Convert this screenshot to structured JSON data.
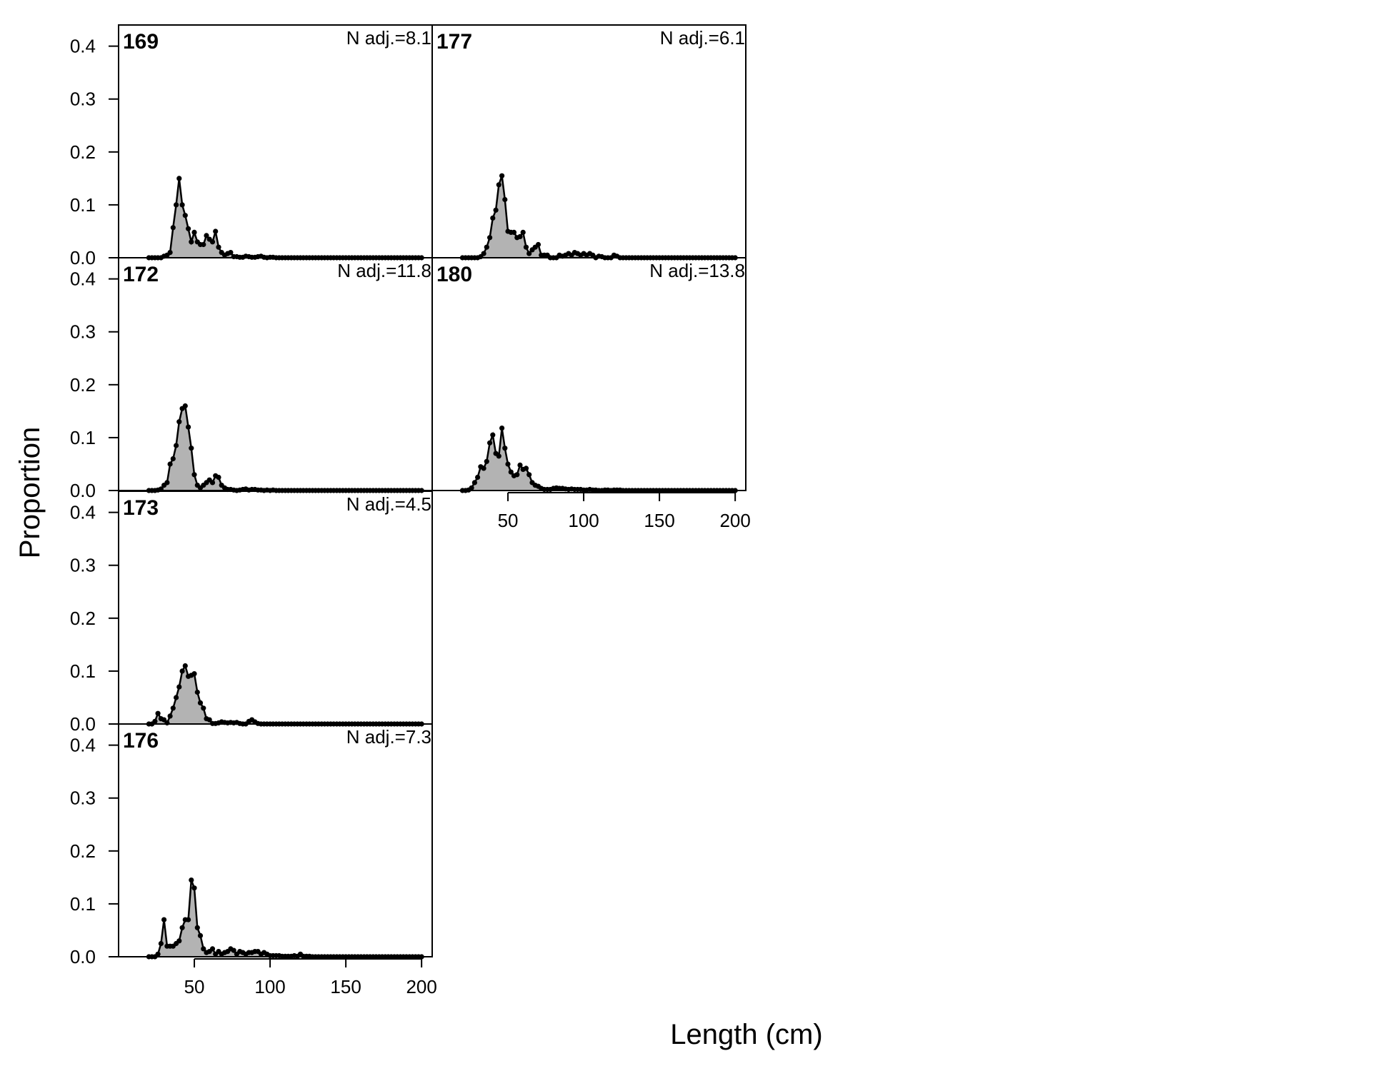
{
  "figure": {
    "xlabel": "Length (cm)",
    "ylabel": "Proportion",
    "yticks": [
      "0.0",
      "0.1",
      "0.2",
      "0.3",
      "0.4"
    ],
    "xticks": [
      "50",
      "100",
      "150",
      "200"
    ]
  },
  "chart_data": [
    {
      "type": "area",
      "title": "169",
      "annotation": "N adj.=8.1",
      "x": [
        20,
        22,
        24,
        26,
        28,
        30,
        32,
        34,
        36,
        38,
        40,
        42,
        44,
        46,
        48,
        50,
        52,
        54,
        56,
        58,
        60,
        62,
        64,
        66,
        68,
        70,
        72,
        74,
        76,
        78,
        80,
        82,
        84,
        86,
        88,
        90,
        92,
        94,
        96,
        98,
        100,
        102,
        104,
        106,
        108,
        110,
        112,
        114,
        116,
        118,
        120,
        122,
        124,
        126,
        128,
        130,
        132,
        134,
        136,
        138,
        140,
        142,
        144,
        146,
        148,
        150,
        152,
        154,
        156,
        158,
        160,
        162,
        164,
        166,
        168,
        170,
        172,
        174,
        176,
        178,
        180,
        182,
        184,
        186,
        188,
        190,
        192,
        194,
        196,
        198,
        200
      ],
      "values": [
        0,
        0,
        0,
        0,
        0,
        0.003,
        0.005,
        0.01,
        0.057,
        0.1,
        0.15,
        0.1,
        0.08,
        0.055,
        0.03,
        0.048,
        0.03,
        0.025,
        0.025,
        0.042,
        0.035,
        0.03,
        0.05,
        0.02,
        0.01,
        0.005,
        0.008,
        0.01,
        0.002,
        0.002,
        0.001,
        0.001,
        0.003,
        0.002,
        0.001,
        0.001,
        0.002,
        0.003,
        0.001,
        0,
        0.001,
        0.001,
        0,
        0,
        0,
        0,
        0,
        0,
        0,
        0,
        0,
        0,
        0,
        0,
        0,
        0,
        0,
        0,
        0,
        0,
        0,
        0,
        0,
        0,
        0,
        0,
        0,
        0,
        0,
        0,
        0,
        0,
        0,
        0,
        0,
        0,
        0,
        0,
        0,
        0,
        0,
        0,
        0,
        0,
        0,
        0,
        0,
        0,
        0,
        0,
        0
      ],
      "xlim": [
        0,
        207
      ],
      "ylim": [
        0,
        0.44
      ],
      "ylabel": "Proportion"
    },
    {
      "type": "area",
      "title": "172",
      "annotation": "N adj.=11.8",
      "x": [
        20,
        22,
        24,
        26,
        28,
        30,
        32,
        34,
        36,
        38,
        40,
        42,
        44,
        46,
        48,
        50,
        52,
        54,
        56,
        58,
        60,
        62,
        64,
        66,
        68,
        70,
        72,
        74,
        76,
        78,
        80,
        82,
        84,
        86,
        88,
        90,
        92,
        94,
        96,
        98,
        100,
        102,
        104,
        106,
        108,
        110,
        112,
        114,
        116,
        118,
        120,
        122,
        124,
        126,
        128,
        130,
        132,
        134,
        136,
        138,
        140,
        142,
        144,
        146,
        148,
        150,
        152,
        154,
        156,
        158,
        160,
        162,
        164,
        166,
        168,
        170,
        172,
        174,
        176,
        178,
        180,
        182,
        184,
        186,
        188,
        190,
        192,
        194,
        196,
        198,
        200
      ],
      "values": [
        0,
        0,
        0,
        0.001,
        0.003,
        0.01,
        0.015,
        0.05,
        0.06,
        0.085,
        0.13,
        0.155,
        0.16,
        0.12,
        0.08,
        0.03,
        0.01,
        0.005,
        0.01,
        0.015,
        0.02,
        0.015,
        0.028,
        0.025,
        0.01,
        0.005,
        0.002,
        0.002,
        0.001,
        0,
        0.001,
        0.002,
        0.003,
        0.001,
        0.002,
        0.002,
        0.001,
        0.001,
        0,
        0.001,
        0,
        0.001,
        0,
        0,
        0,
        0,
        0,
        0,
        0,
        0,
        0,
        0,
        0,
        0,
        0,
        0,
        0,
        0,
        0,
        0,
        0,
        0,
        0,
        0,
        0,
        0,
        0,
        0,
        0,
        0,
        0,
        0,
        0,
        0,
        0,
        0,
        0,
        0,
        0,
        0,
        0,
        0,
        0,
        0,
        0,
        0,
        0,
        0,
        0,
        0,
        0
      ],
      "xlim": [
        0,
        207
      ],
      "ylim": [
        0,
        0.44
      ],
      "ylabel": "Proportion"
    },
    {
      "type": "area",
      "title": "173",
      "annotation": "N adj.=4.5",
      "x": [
        20,
        22,
        24,
        26,
        28,
        30,
        32,
        34,
        36,
        38,
        40,
        42,
        44,
        46,
        48,
        50,
        52,
        54,
        56,
        58,
        60,
        62,
        64,
        66,
        68,
        70,
        72,
        74,
        76,
        78,
        80,
        82,
        84,
        86,
        88,
        90,
        92,
        94,
        96,
        98,
        100,
        102,
        104,
        106,
        108,
        110,
        112,
        114,
        116,
        118,
        120,
        122,
        124,
        126,
        128,
        130,
        132,
        134,
        136,
        138,
        140,
        142,
        144,
        146,
        148,
        150,
        152,
        154,
        156,
        158,
        160,
        162,
        164,
        166,
        168,
        170,
        172,
        174,
        176,
        178,
        180,
        182,
        184,
        186,
        188,
        190,
        192,
        194,
        196,
        198,
        200
      ],
      "values": [
        0,
        0,
        0.005,
        0.02,
        0.01,
        0.008,
        0.002,
        0.015,
        0.03,
        0.05,
        0.07,
        0.1,
        0.11,
        0.09,
        0.092,
        0.095,
        0.06,
        0.04,
        0.03,
        0.01,
        0.008,
        0.001,
        0.001,
        0.002,
        0.004,
        0.003,
        0.002,
        0.003,
        0.002,
        0.003,
        0.001,
        0,
        0,
        0.005,
        0.008,
        0.004,
        0.001,
        0,
        0,
        0,
        0,
        0,
        0,
        0,
        0,
        0,
        0,
        0,
        0,
        0,
        0,
        0,
        0,
        0,
        0,
        0,
        0,
        0,
        0,
        0,
        0,
        0,
        0,
        0,
        0,
        0,
        0,
        0,
        0,
        0,
        0,
        0,
        0,
        0,
        0,
        0,
        0,
        0,
        0,
        0,
        0,
        0,
        0,
        0,
        0,
        0,
        0,
        0,
        0,
        0,
        0
      ],
      "xlim": [
        0,
        207
      ],
      "ylim": [
        0,
        0.44
      ],
      "ylabel": "Proportion"
    },
    {
      "type": "area",
      "title": "176",
      "annotation": "N adj.=7.3",
      "x": [
        20,
        22,
        24,
        26,
        28,
        30,
        32,
        34,
        36,
        38,
        40,
        42,
        44,
        46,
        48,
        50,
        52,
        54,
        56,
        58,
        60,
        62,
        64,
        66,
        68,
        70,
        72,
        74,
        76,
        78,
        80,
        82,
        84,
        86,
        88,
        90,
        92,
        94,
        96,
        98,
        100,
        102,
        104,
        106,
        108,
        110,
        112,
        114,
        116,
        118,
        120,
        122,
        124,
        126,
        128,
        130,
        132,
        134,
        136,
        138,
        140,
        142,
        144,
        146,
        148,
        150,
        152,
        154,
        156,
        158,
        160,
        162,
        164,
        166,
        168,
        170,
        172,
        174,
        176,
        178,
        180,
        182,
        184,
        186,
        188,
        190,
        192,
        194,
        196,
        198,
        200
      ],
      "values": [
        0,
        0,
        0,
        0.005,
        0.025,
        0.07,
        0.02,
        0.02,
        0.02,
        0.025,
        0.03,
        0.055,
        0.07,
        0.07,
        0.145,
        0.13,
        0.055,
        0.04,
        0.015,
        0.008,
        0.01,
        0.015,
        0.005,
        0.01,
        0.005,
        0.008,
        0.01,
        0.015,
        0.012,
        0.005,
        0.01,
        0.008,
        0.005,
        0.008,
        0.008,
        0.01,
        0.01,
        0.005,
        0.008,
        0.005,
        0.002,
        0.002,
        0.002,
        0.002,
        0.001,
        0.001,
        0.001,
        0.001,
        0.002,
        0.001,
        0.005,
        0.001,
        0.001,
        0.001,
        0,
        0,
        0,
        0,
        0,
        0,
        0,
        0,
        0,
        0,
        0,
        0,
        0,
        0,
        0,
        0,
        0,
        0,
        0,
        0,
        0,
        0,
        0,
        0,
        0,
        0,
        0,
        0,
        0,
        0,
        0,
        0,
        0,
        0,
        0,
        0,
        0
      ],
      "xlim": [
        0,
        207
      ],
      "ylim": [
        0,
        0.44
      ],
      "ylabel": "Proportion",
      "xlabel": "Length (cm)"
    },
    {
      "type": "area",
      "title": "177",
      "annotation": "N adj.=6.1",
      "x": [
        20,
        22,
        24,
        26,
        28,
        30,
        32,
        34,
        36,
        38,
        40,
        42,
        44,
        46,
        48,
        50,
        52,
        54,
        56,
        58,
        60,
        62,
        64,
        66,
        68,
        70,
        72,
        74,
        76,
        78,
        80,
        82,
        84,
        86,
        88,
        90,
        92,
        94,
        96,
        98,
        100,
        102,
        104,
        106,
        108,
        110,
        112,
        114,
        116,
        118,
        120,
        122,
        124,
        126,
        128,
        130,
        132,
        134,
        136,
        138,
        140,
        142,
        144,
        146,
        148,
        150,
        152,
        154,
        156,
        158,
        160,
        162,
        164,
        166,
        168,
        170,
        172,
        174,
        176,
        178,
        180,
        182,
        184,
        186,
        188,
        190,
        192,
        194,
        196,
        198,
        200
      ],
      "values": [
        0,
        0,
        0,
        0,
        0,
        0,
        0.002,
        0.008,
        0.02,
        0.038,
        0.075,
        0.09,
        0.138,
        0.155,
        0.11,
        0.05,
        0.048,
        0.048,
        0.038,
        0.04,
        0.048,
        0.02,
        0.008,
        0.015,
        0.02,
        0.025,
        0.005,
        0.005,
        0.005,
        0,
        0,
        0,
        0.005,
        0.003,
        0.005,
        0.008,
        0.005,
        0.01,
        0.008,
        0.005,
        0.008,
        0.005,
        0.008,
        0.005,
        0,
        0.003,
        0.002,
        0,
        0,
        0,
        0.005,
        0.003,
        0,
        0,
        0,
        0,
        0,
        0,
        0,
        0,
        0,
        0,
        0,
        0,
        0,
        0,
        0,
        0,
        0,
        0,
        0,
        0,
        0,
        0,
        0,
        0,
        0,
        0,
        0,
        0,
        0,
        0,
        0,
        0,
        0,
        0,
        0,
        0,
        0,
        0,
        0
      ],
      "xlim": [
        0,
        207
      ],
      "ylim": [
        0,
        0.44
      ],
      "ylabel": ""
    },
    {
      "type": "area",
      "title": "180",
      "annotation": "N adj.=13.8",
      "x": [
        20,
        22,
        24,
        26,
        28,
        30,
        32,
        34,
        36,
        38,
        40,
        42,
        44,
        46,
        48,
        50,
        52,
        54,
        56,
        58,
        60,
        62,
        64,
        66,
        68,
        70,
        72,
        74,
        76,
        78,
        80,
        82,
        84,
        86,
        88,
        90,
        92,
        94,
        96,
        98,
        100,
        102,
        104,
        106,
        108,
        110,
        112,
        114,
        116,
        118,
        120,
        122,
        124,
        126,
        128,
        130,
        132,
        134,
        136,
        138,
        140,
        142,
        144,
        146,
        148,
        150,
        152,
        154,
        156,
        158,
        160,
        162,
        164,
        166,
        168,
        170,
        172,
        174,
        176,
        178,
        180,
        182,
        184,
        186,
        188,
        190,
        192,
        194,
        196,
        198,
        200
      ],
      "values": [
        0,
        0,
        0.001,
        0.005,
        0.015,
        0.025,
        0.045,
        0.042,
        0.055,
        0.09,
        0.105,
        0.07,
        0.065,
        0.118,
        0.08,
        0.05,
        0.035,
        0.028,
        0.03,
        0.048,
        0.04,
        0.042,
        0.03,
        0.015,
        0.01,
        0.008,
        0.004,
        0.002,
        0.002,
        0.002,
        0.004,
        0.005,
        0.004,
        0.004,
        0.003,
        0.002,
        0.003,
        0.002,
        0.002,
        0.002,
        0.001,
        0.001,
        0.002,
        0.001,
        0.001,
        0,
        0,
        0.001,
        0.001,
        0,
        0.001,
        0.001,
        0.001,
        0,
        0,
        0,
        0,
        0,
        0,
        0,
        0,
        0,
        0,
        0,
        0,
        0,
        0,
        0,
        0,
        0,
        0,
        0,
        0,
        0,
        0,
        0,
        0,
        0,
        0,
        0,
        0,
        0,
        0,
        0,
        0,
        0,
        0,
        0,
        0,
        0,
        0
      ],
      "xlim": [
        0,
        207
      ],
      "ylim": [
        0,
        0.44
      ],
      "ylabel": ""
    }
  ]
}
